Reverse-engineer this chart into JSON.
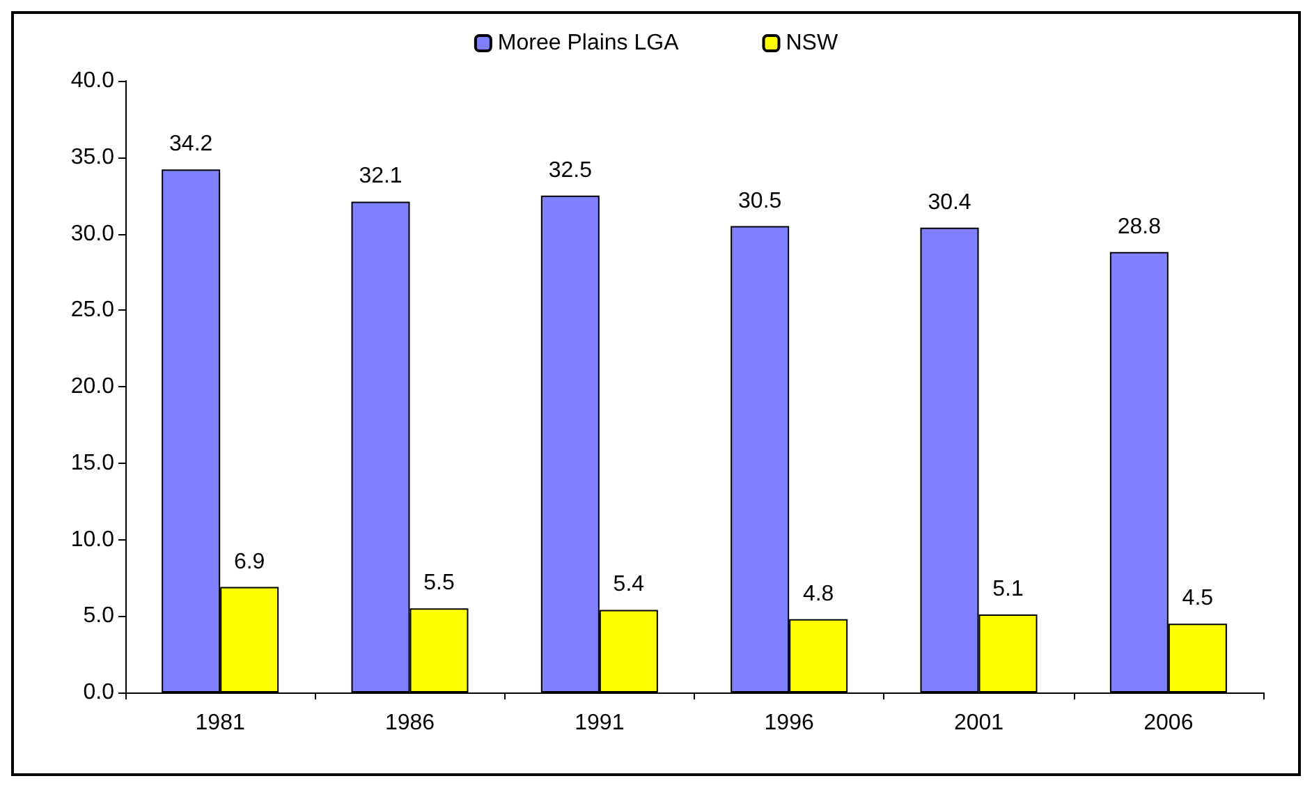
{
  "chart_data": {
    "type": "bar",
    "categories": [
      "1981",
      "1986",
      "1991",
      "1996",
      "2001",
      "2006"
    ],
    "series": [
      {
        "name": "Moree Plains LGA",
        "color": "#8080ff",
        "values": [
          34.2,
          32.1,
          32.5,
          30.5,
          30.4,
          28.8
        ]
      },
      {
        "name": "NSW",
        "color": "#ffff00",
        "values": [
          6.9,
          5.5,
          5.4,
          4.8,
          5.1,
          4.5
        ]
      }
    ],
    "ylim": [
      0,
      40
    ],
    "yticks": [
      {
        "value": 0,
        "label": "0.0"
      },
      {
        "value": 5,
        "label": "5.0"
      },
      {
        "value": 10,
        "label": "10.0"
      },
      {
        "value": 15,
        "label": "15.0"
      },
      {
        "value": 20,
        "label": "20.0"
      },
      {
        "value": 25,
        "label": "25.0"
      },
      {
        "value": 30,
        "label": "30.0"
      },
      {
        "value": 35,
        "label": "35.0"
      },
      {
        "value": 40,
        "label": "40.0"
      }
    ],
    "data_labels": true,
    "legend": "top",
    "grid": false
  }
}
